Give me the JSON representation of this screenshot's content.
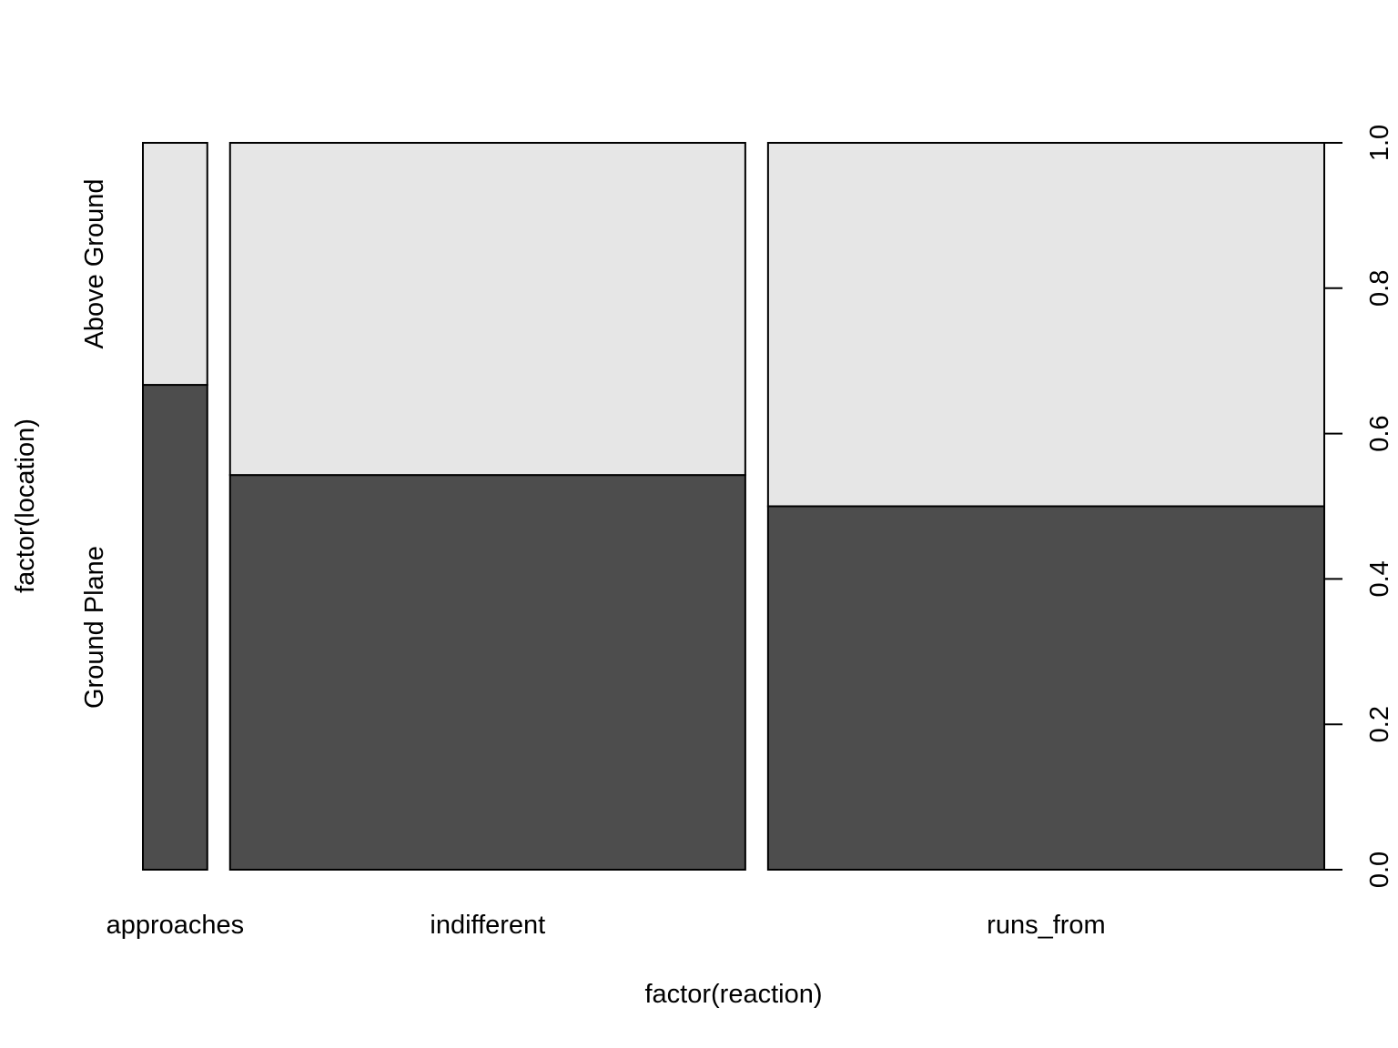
{
  "chart_data": {
    "type": "spineplot",
    "title": "",
    "xlabel": "factor(reaction)",
    "ylabel": "factor(location)",
    "categories": [
      "approaches",
      "indifferent",
      "runs_from"
    ],
    "category_widths": [
      0.055,
      0.44,
      0.475
    ],
    "series": [
      {
        "name": "Ground Plane",
        "values": [
          0.667,
          0.543,
          0.5
        ],
        "color": "#4d4d4d"
      },
      {
        "name": "Above Ground",
        "values": [
          0.333,
          0.457,
          0.5
        ],
        "color": "#e6e6e6"
      }
    ],
    "y_axis_side": "right",
    "ylim": [
      0,
      1
    ],
    "yticks": [
      "0.0",
      "0.2",
      "0.4",
      "0.6",
      "0.8",
      "1.0"
    ],
    "grid": false
  }
}
